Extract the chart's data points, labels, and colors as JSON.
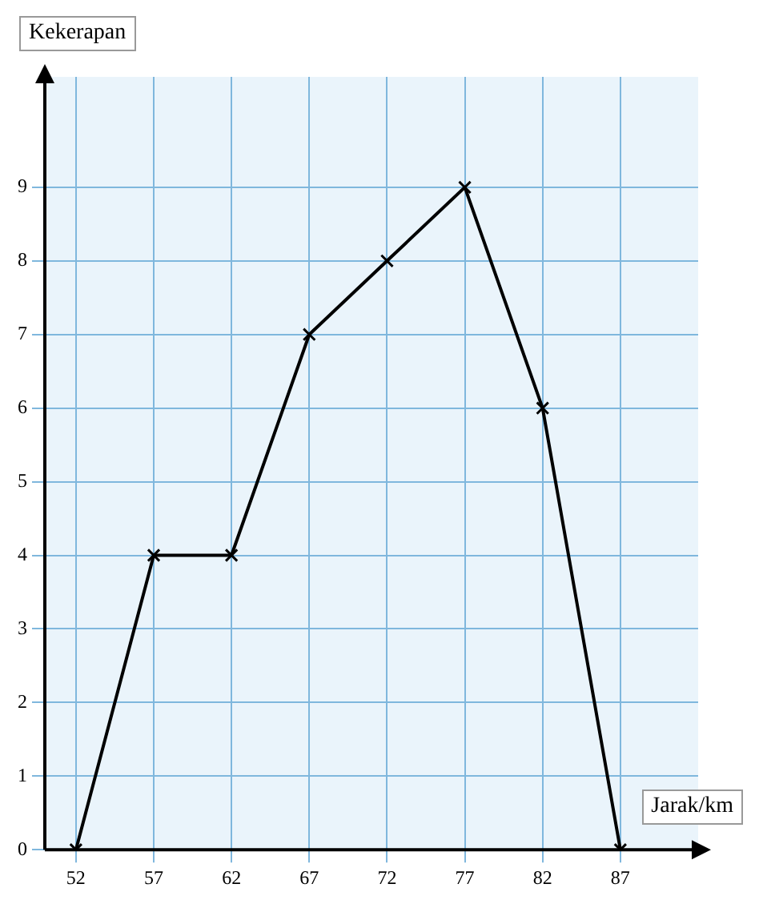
{
  "chart_data": {
    "type": "line",
    "xlabel": "Jarak/km",
    "ylabel": "Kekerapan",
    "x": [
      52,
      57,
      62,
      67,
      72,
      77,
      82,
      87
    ],
    "series": [
      {
        "color": "#000000",
        "values": [
          0,
          4,
          4,
          7,
          8,
          9,
          6,
          0
        ]
      }
    ],
    "xlim": [
      50,
      92
    ],
    "xticks": [
      52,
      57,
      62,
      67,
      72,
      77,
      82,
      87
    ],
    "ylim": [
      0,
      10.5
    ],
    "yticks": [
      0,
      1,
      2,
      3,
      4,
      5,
      6,
      7,
      8,
      9
    ],
    "grid": true,
    "legend": false,
    "marker": "cross",
    "line_style": "solid"
  }
}
